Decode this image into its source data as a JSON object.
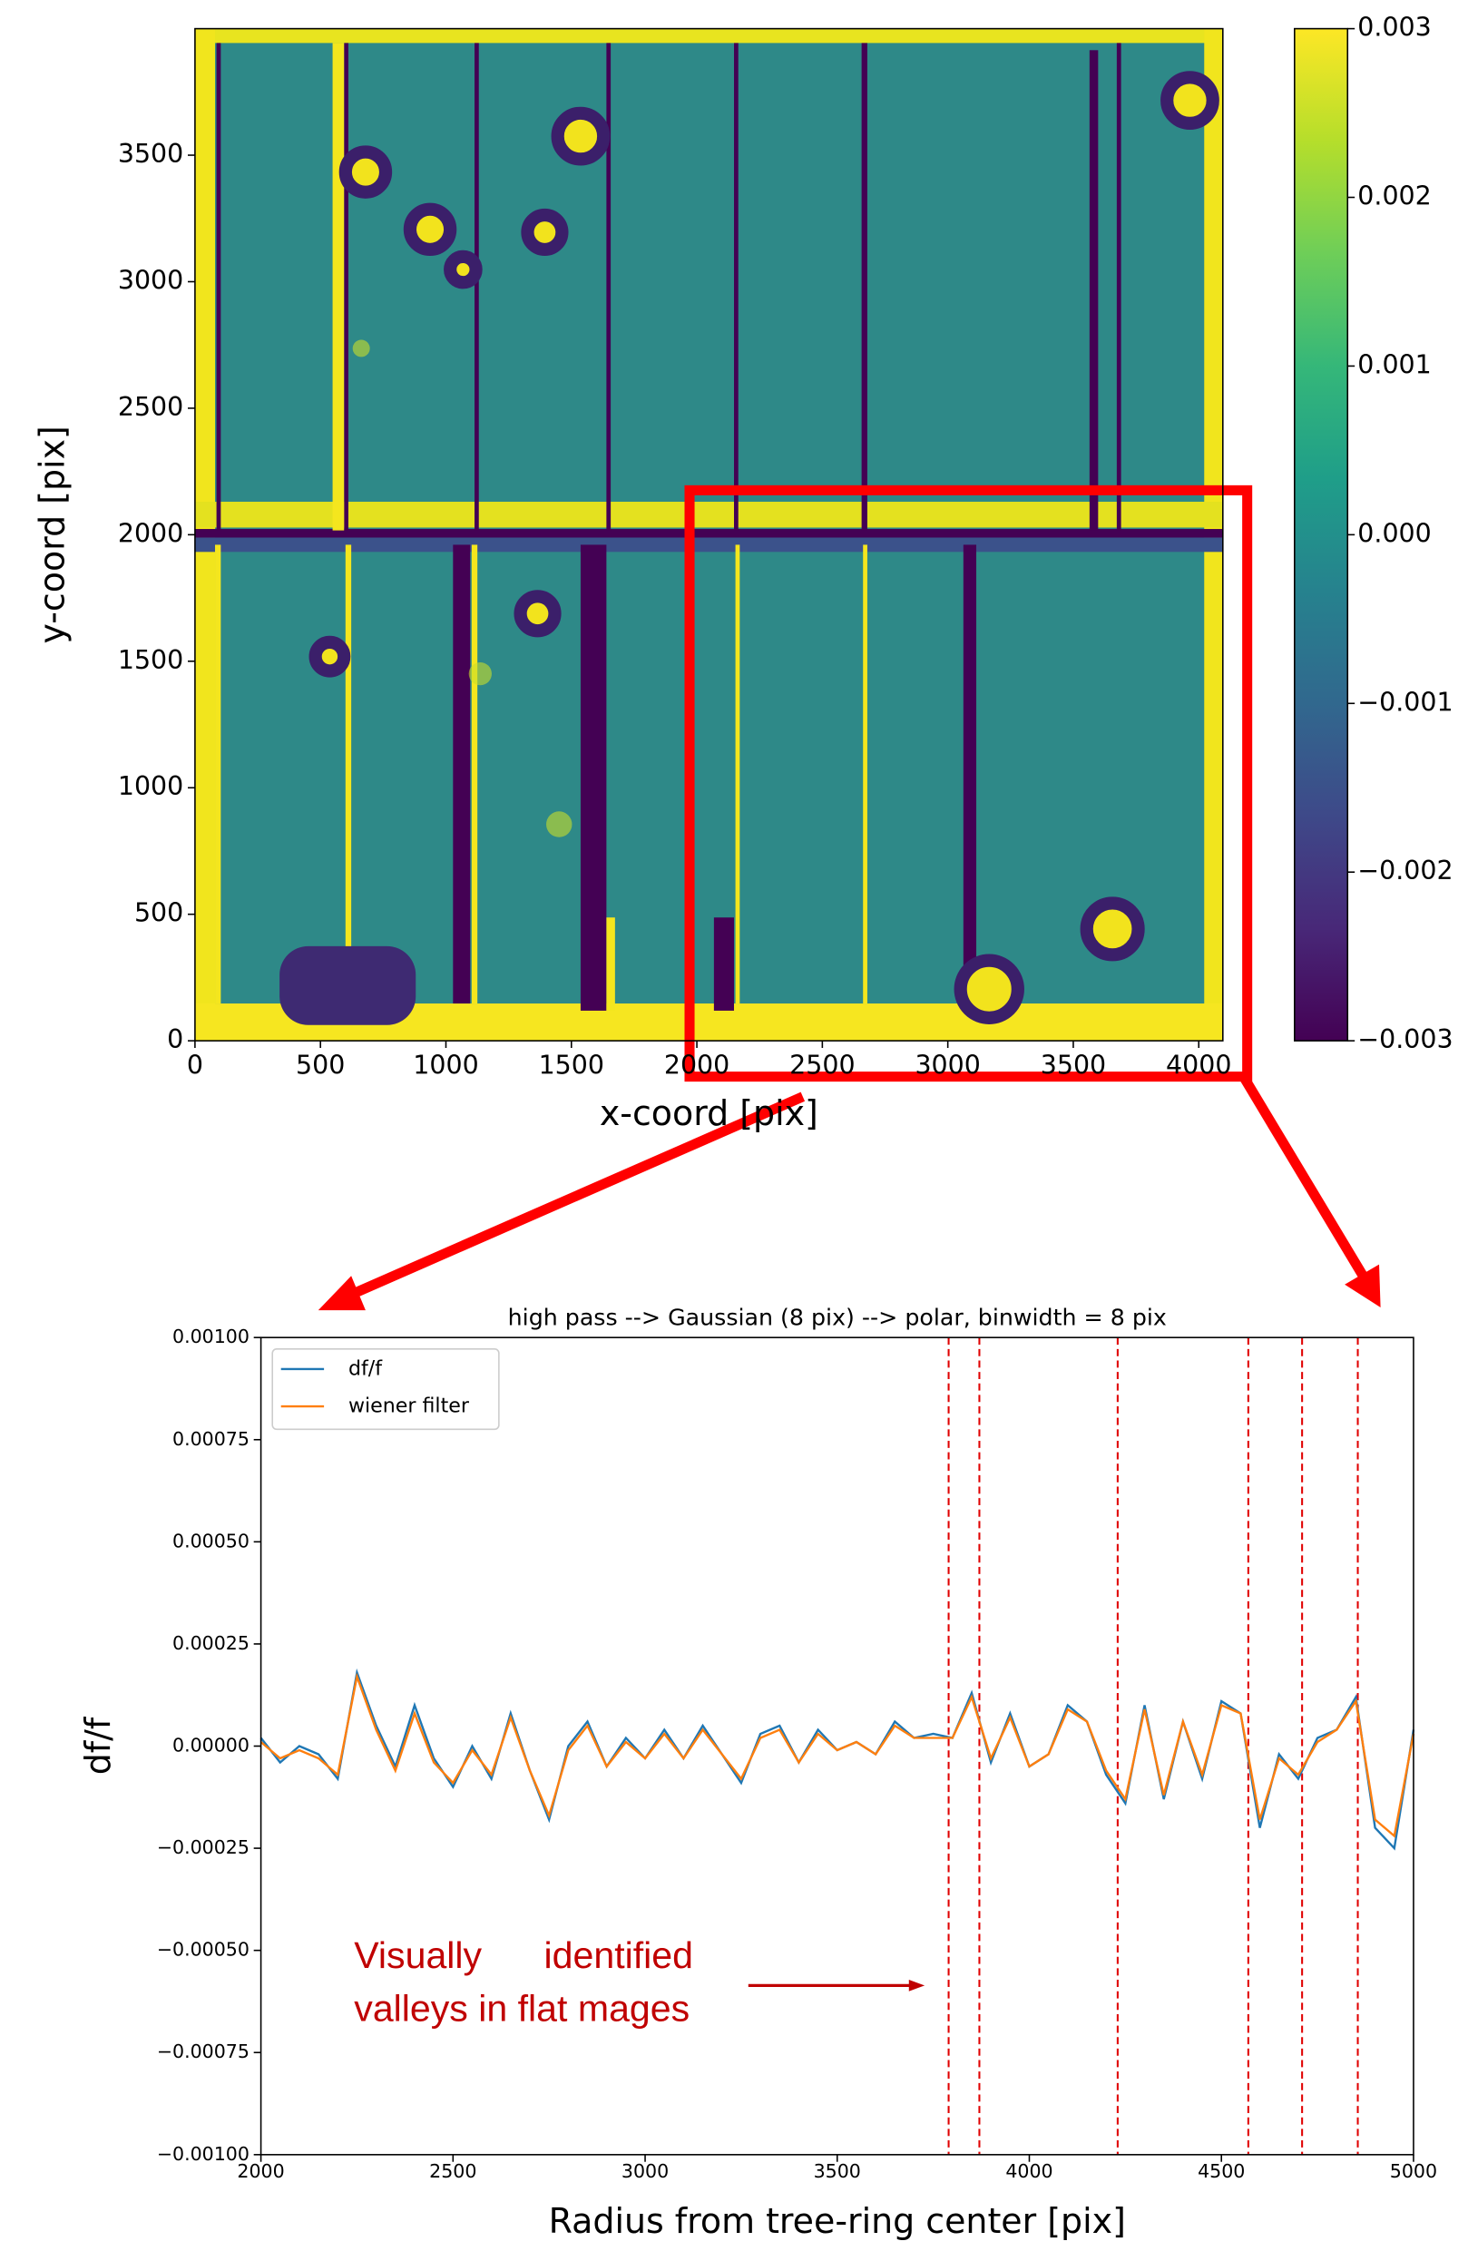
{
  "chart_data": [
    {
      "type": "image",
      "xlabel": "x-coord [pix]",
      "ylabel": "y-coord [pix]",
      "xlim": [
        0,
        4096
      ],
      "ylim": [
        0,
        4000
      ],
      "xticks": [
        0,
        500,
        1000,
        1500,
        2000,
        2500,
        3000,
        3500,
        4000
      ],
      "yticks": [
        0,
        500,
        1000,
        1500,
        2000,
        2500,
        3000,
        3500
      ],
      "colormap": "viridis",
      "colorbar": {
        "clim": [
          -0.003,
          0.003
        ],
        "ticks": [
          0.003,
          0.002,
          0.001,
          {
            "value": 0,
            "label": "0.000"
          },
          {
            "value": -0.001,
            "label": "−0.001"
          },
          {
            "value": -0.002,
            "label": "−0.002"
          },
          {
            "value": -0.003,
            "label": "−0.003"
          }
        ]
      }
    },
    {
      "type": "line",
      "title": "high pass --> Gaussian (8 pix) --> polar, binwidth = 8 pix",
      "xlabel": "Radius from tree-ring center [pix]",
      "ylabel": "df/f",
      "xlim": [
        2000,
        5000
      ],
      "ylim": [
        -0.001,
        0.001
      ],
      "xticks": [
        2000,
        2500,
        3000,
        3500,
        4000,
        4500,
        5000
      ],
      "yticks": [
        {
          "value": 0.001,
          "label": "0.00100"
        },
        {
          "value": 0.00075,
          "label": "0.00075"
        },
        {
          "value": 0.0005,
          "label": "0.00050"
        },
        {
          "value": 0.00025,
          "label": "0.00025"
        },
        {
          "value": 0,
          "label": "0.00000"
        },
        {
          "value": -0.00025,
          "label": "−0.00025"
        },
        {
          "value": -0.0005,
          "label": "−0.00050"
        },
        {
          "value": -0.00075,
          "label": "−0.00075"
        },
        {
          "value": -0.001,
          "label": "−0.00100"
        }
      ],
      "legend": "upper left",
      "x": [
        2000,
        2050,
        2100,
        2150,
        2200,
        2250,
        2300,
        2350,
        2400,
        2450,
        2500,
        2550,
        2600,
        2650,
        2700,
        2750,
        2800,
        2850,
        2900,
        2950,
        3000,
        3050,
        3100,
        3150,
        3200,
        3250,
        3300,
        3350,
        3400,
        3450,
        3500,
        3550,
        3600,
        3650,
        3700,
        3750,
        3800,
        3850,
        3900,
        3950,
        4000,
        4050,
        4100,
        4150,
        4200,
        4250,
        4300,
        4350,
        4400,
        4450,
        4500,
        4550,
        4600,
        4650,
        4700,
        4750,
        4800,
        4850,
        4900,
        4950,
        5000
      ],
      "series": [
        {
          "name": "df/f",
          "color": "#1f77b4",
          "values": [
            2e-05,
            -4e-05,
            0,
            -2e-05,
            -8e-05,
            0.00018,
            5e-05,
            -5e-05,
            0.0001,
            -3e-05,
            -0.0001,
            0,
            -8e-05,
            8e-05,
            -6e-05,
            -0.00018,
            0,
            6e-05,
            -5e-05,
            2e-05,
            -3e-05,
            4e-05,
            -3e-05,
            5e-05,
            -2e-05,
            -9e-05,
            3e-05,
            5e-05,
            -4e-05,
            4e-05,
            -1e-05,
            1e-05,
            -2e-05,
            6e-05,
            2e-05,
            3e-05,
            2e-05,
            0.00013,
            -4e-05,
            8e-05,
            -5e-05,
            -2e-05,
            0.0001,
            6e-05,
            -7e-05,
            -0.00014,
            0.0001,
            -0.00013,
            6e-05,
            -8e-05,
            0.00011,
            8e-05,
            -0.0002,
            -2e-05,
            -8e-05,
            2e-05,
            4e-05,
            0.00012,
            -0.0002,
            -0.00025,
            4e-05
          ]
        },
        {
          "name": "wiener filter",
          "color": "#ff7f0e",
          "values": [
            1e-05,
            -3e-05,
            -1e-05,
            -3e-05,
            -7e-05,
            0.00017,
            4e-05,
            -6e-05,
            8e-05,
            -4e-05,
            -9e-05,
            -1e-05,
            -7e-05,
            7e-05,
            -6e-05,
            -0.00017,
            -1e-05,
            5e-05,
            -5e-05,
            1e-05,
            -3e-05,
            3e-05,
            -3e-05,
            4e-05,
            -2e-05,
            -8e-05,
            2e-05,
            4e-05,
            -4e-05,
            3e-05,
            -1e-05,
            1e-05,
            -2e-05,
            5e-05,
            2e-05,
            2e-05,
            2e-05,
            0.00012,
            -3e-05,
            7e-05,
            -5e-05,
            -2e-05,
            9e-05,
            6e-05,
            -6e-05,
            -0.00013,
            9e-05,
            -0.00012,
            6e-05,
            -7e-05,
            0.0001,
            8e-05,
            -0.00018,
            -3e-05,
            -7e-05,
            1e-05,
            4e-05,
            0.00011,
            -0.00018,
            -0.00022,
            3e-05
          ]
        }
      ],
      "vlines": [
        3790,
        3870,
        4230,
        4570,
        4710,
        4855
      ],
      "vline_color": "#e00000",
      "annotation": [
        "Visually      identified",
        "valleys in flat mages"
      ],
      "annotation_color": "#c00000"
    }
  ]
}
